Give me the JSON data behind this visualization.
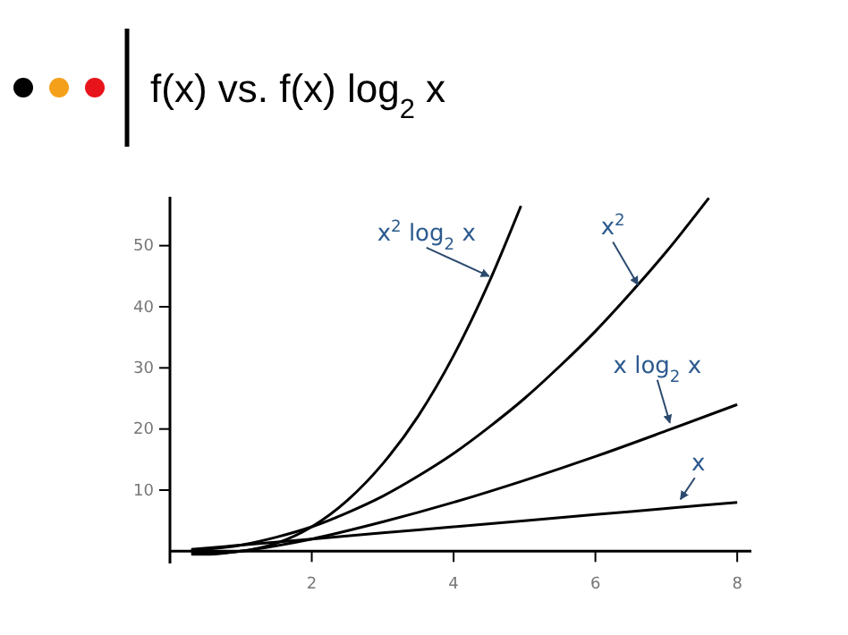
{
  "chart_data": {
    "type": "line",
    "title": "f(x) vs. f(x) log$_{2}$ x",
    "xlim": [
      0,
      8.2
    ],
    "xticks": [
      2,
      4,
      6,
      8
    ],
    "ylim": [
      -2,
      58
    ],
    "yticks": [
      10,
      20,
      30,
      40,
      50
    ],
    "grid": false,
    "marker": "none",
    "line_style": "solid",
    "series": [
      {
        "color": "#000000",
        "x": [
          0.3,
          1,
          2,
          3,
          4,
          5,
          6,
          7,
          8
        ],
        "values": [
          0.3,
          1,
          2,
          3,
          4,
          5,
          6,
          7,
          8
        ]
      },
      {
        "color": "#000000",
        "x": [
          0.3,
          0.5,
          1,
          1.5,
          2,
          3,
          4,
          5,
          6,
          7,
          8
        ],
        "values": [
          -0.5,
          -0.5,
          0,
          0.9,
          2,
          4.8,
          8,
          11.6,
          15.5,
          19.7,
          24
        ]
      },
      {
        "color": "#000000",
        "x": [
          0.3,
          1,
          1.5,
          2,
          2.5,
          3,
          3.5,
          4,
          4.5,
          5,
          5.5,
          6,
          6.5,
          7,
          7.6
        ],
        "values": [
          0.1,
          1,
          2.3,
          4,
          6.3,
          9,
          12.3,
          16,
          20.3,
          25,
          30.3,
          36,
          42.3,
          49,
          57.8
        ]
      },
      {
        "color": "#000000",
        "x": [
          0.3,
          0.5,
          0.8,
          1,
          1.5,
          2,
          2.5,
          3,
          3.5,
          4,
          4.5,
          4.95
        ],
        "values": [
          -0.2,
          -0.3,
          -0.2,
          0,
          1.3,
          4,
          8.3,
          14.3,
          22.1,
          32,
          44,
          56.5
        ]
      }
    ],
    "annotations": [
      {
        "text": "x$^{2}$ log$_{2}$ x",
        "x": 4.5,
        "y": 45
      },
      {
        "text": "x$^{2}$",
        "x": 6.6,
        "y": 43.6
      },
      {
        "text": "x log$_{2}$ x",
        "x": 7.05,
        "y": 21
      },
      {
        "text": "x",
        "x": 7.2,
        "y": 8.5
      }
    ]
  }
}
